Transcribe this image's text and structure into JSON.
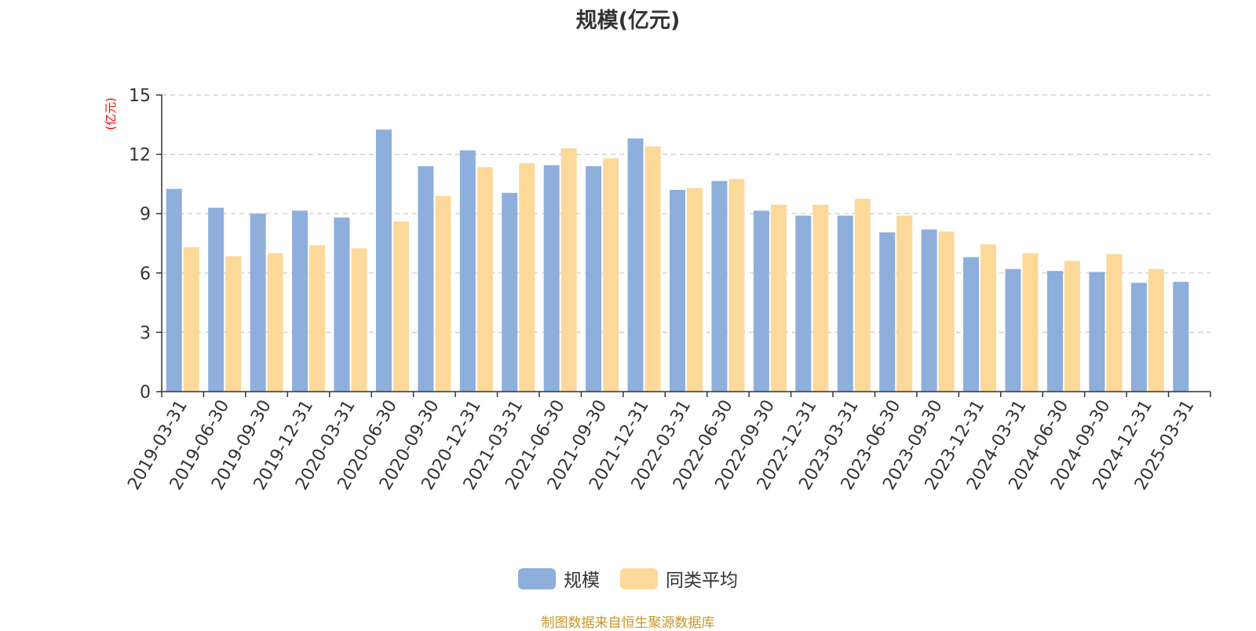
{
  "chart_data": {
    "type": "bar",
    "title": "规模(亿元)",
    "ylabel": "(亿元)",
    "xlabel": "",
    "ylim": [
      0,
      15
    ],
    "yticks": [
      0,
      3,
      6,
      9,
      12,
      15
    ],
    "grid": true,
    "legend_position": "bottom-center",
    "categories": [
      "2019-03-31",
      "2019-06-30",
      "2019-09-30",
      "2019-12-31",
      "2020-03-31",
      "2020-06-30",
      "2020-09-30",
      "2020-12-31",
      "2021-03-31",
      "2021-06-30",
      "2021-09-30",
      "2021-12-31",
      "2022-03-31",
      "2022-06-30",
      "2022-09-30",
      "2022-12-31",
      "2023-03-31",
      "2023-06-30",
      "2023-09-30",
      "2023-12-31",
      "2024-03-31",
      "2024-06-30",
      "2024-09-30",
      "2024-12-31",
      "2025-03-31"
    ],
    "series": [
      {
        "name": "规模",
        "color": "#8eaedb",
        "values": [
          10.25,
          9.3,
          9.0,
          9.15,
          8.8,
          13.25,
          11.4,
          12.2,
          10.05,
          11.45,
          11.4,
          12.8,
          10.2,
          10.65,
          9.15,
          8.9,
          8.9,
          8.05,
          8.2,
          6.8,
          6.2,
          6.1,
          6.05,
          5.5,
          5.55
        ]
      },
      {
        "name": "同类平均",
        "color": "#fcd899",
        "values": [
          7.3,
          6.85,
          7.0,
          7.4,
          7.25,
          8.6,
          9.9,
          11.35,
          11.55,
          12.3,
          11.8,
          12.4,
          10.3,
          10.75,
          9.45,
          9.45,
          9.75,
          8.9,
          8.1,
          7.45,
          7.0,
          6.6,
          6.95,
          6.2,
          null
        ]
      }
    ]
  },
  "legend": {
    "items": [
      {
        "label": "规模",
        "color": "#8eaedb"
      },
      {
        "label": "同类平均",
        "color": "#fcd899"
      }
    ]
  },
  "source_text": "制图数据来自恒生聚源数据库"
}
